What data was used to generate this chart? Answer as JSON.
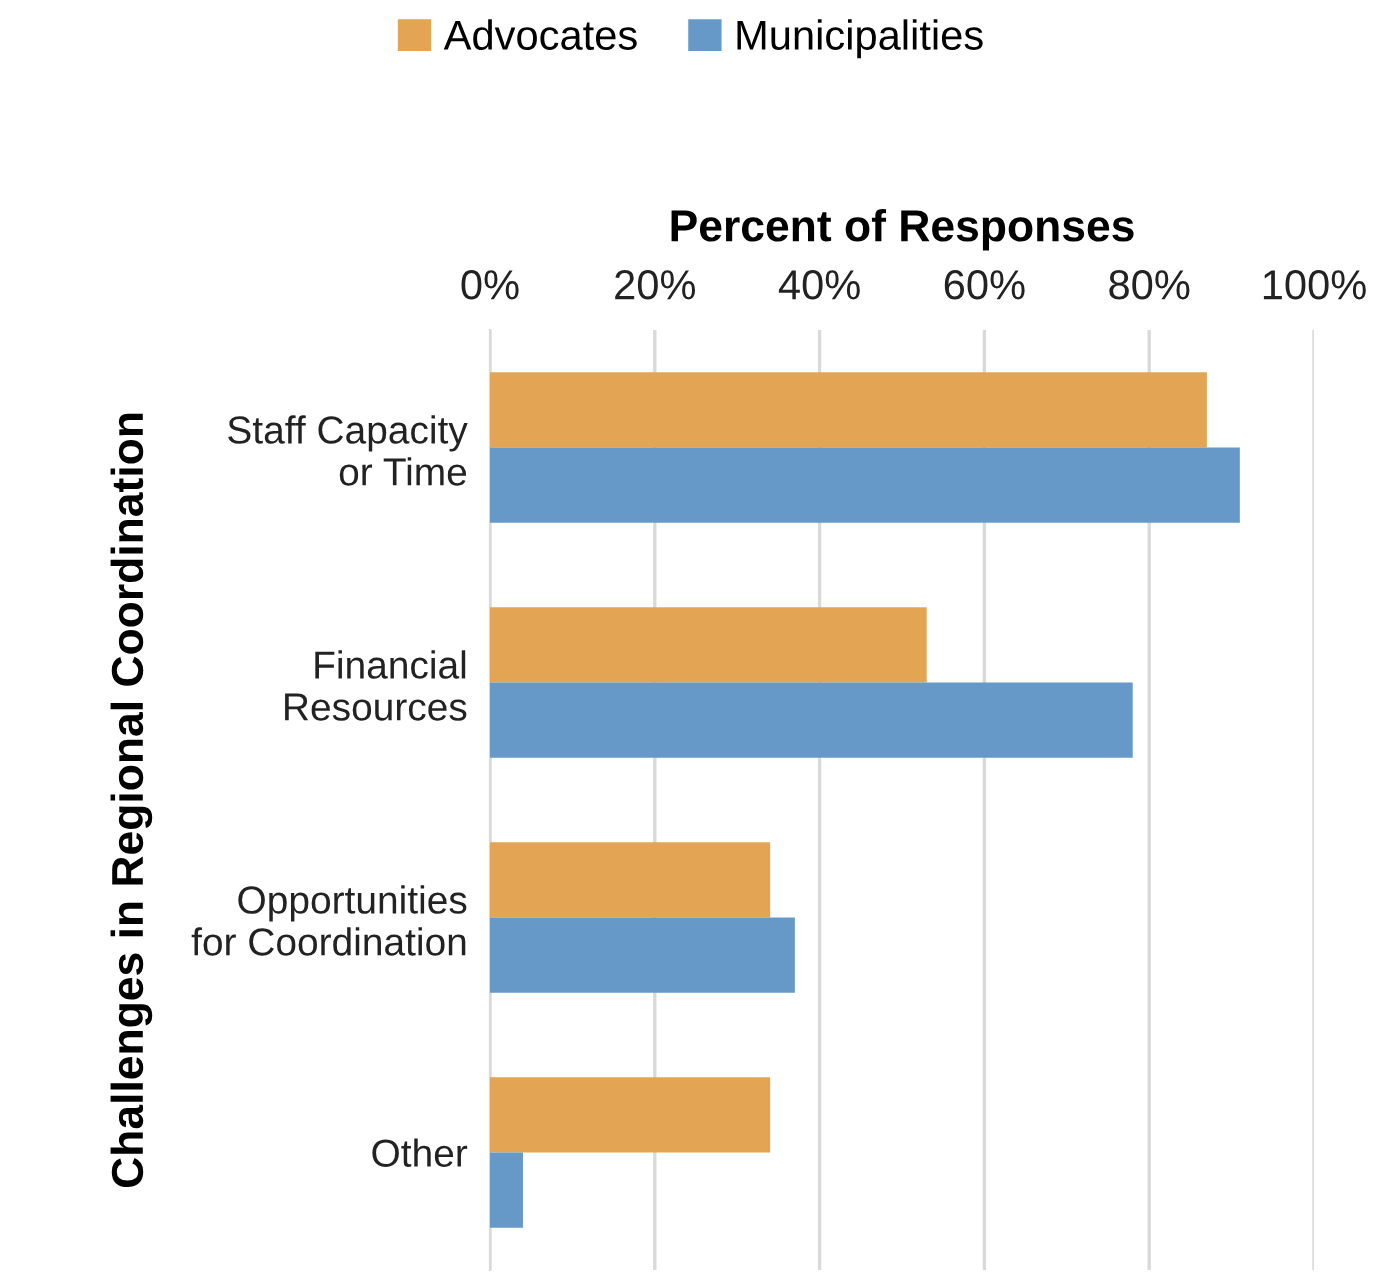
{
  "chart_data": {
    "type": "bar",
    "orientation": "horizontal",
    "xlabel": "Percent of Responses",
    "ylabel": "Challenges in Regional Coordination",
    "categories": [
      "Staff Capacity\nor Time",
      "Financial\nResources",
      "Opportunities\nfor Coordination",
      "Other"
    ],
    "series": [
      {
        "name": "Advocates",
        "color": "#e3a553",
        "values": [
          87,
          53,
          34,
          34
        ]
      },
      {
        "name": "Municipalities",
        "color": "#6699c8",
        "values": [
          91,
          78,
          37,
          4
        ]
      }
    ],
    "xlim": [
      0,
      100
    ],
    "xticks": [
      {
        "value": 0,
        "label": "0%"
      },
      {
        "value": 20,
        "label": "20%"
      },
      {
        "value": 40,
        "label": "40%"
      },
      {
        "value": 60,
        "label": "60%"
      },
      {
        "value": 80,
        "label": "80%"
      },
      {
        "value": 100,
        "label": "100%"
      }
    ],
    "grid": "x",
    "legend": "top"
  }
}
